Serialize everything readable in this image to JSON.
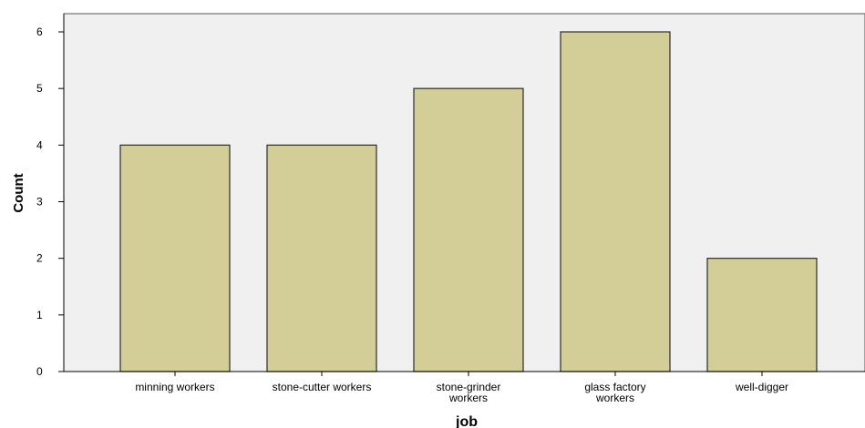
{
  "chart_data": {
    "type": "bar",
    "categories": [
      [
        "minning workers"
      ],
      [
        "stone-cutter workers"
      ],
      [
        "stone-grinder",
        "workers"
      ],
      [
        "glass factory",
        "workers"
      ],
      [
        "well-digger"
      ]
    ],
    "values": [
      4,
      4,
      5,
      6,
      2
    ],
    "xlabel": "job",
    "ylabel": "Count",
    "ylim": [
      0,
      6
    ],
    "yticks": [
      0,
      1,
      2,
      3,
      4,
      5,
      6
    ],
    "grid": false,
    "colors": {
      "bar_fill": "#d3ce97",
      "bar_stroke": "#2b2b2b",
      "plot_background": "#f0f0f0"
    }
  }
}
